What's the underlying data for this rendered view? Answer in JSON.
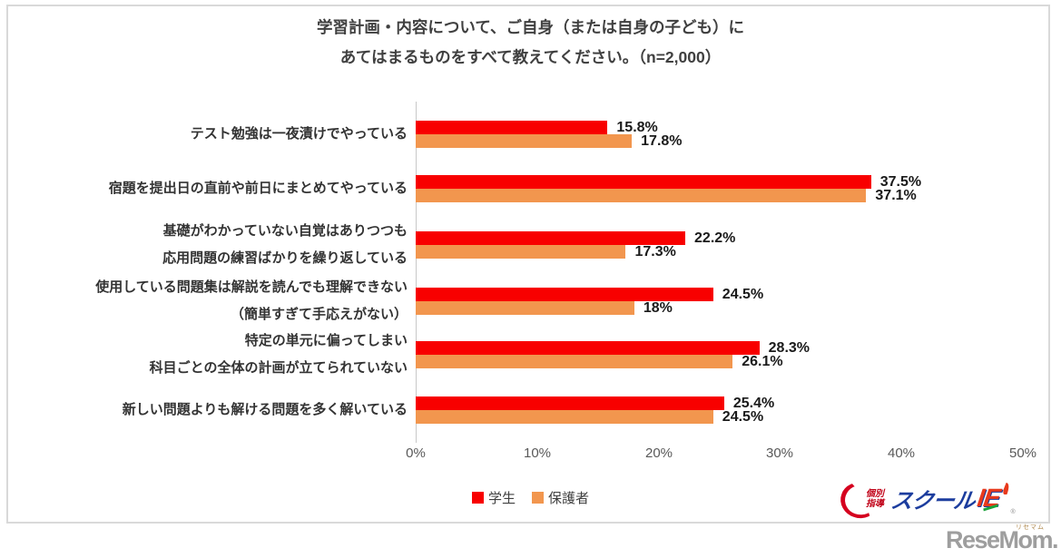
{
  "title": {
    "line1": "学習計画・内容について、ご自身（または自身の子ども）に",
    "line2": "あてはまるものをすべて教えてください。（n=2,000）"
  },
  "colors": {
    "student": "#f80000",
    "parent": "#f2964e"
  },
  "axis": {
    "max": 50,
    "ticks": [
      "0%",
      "10%",
      "20%",
      "30%",
      "40%",
      "50%"
    ]
  },
  "legend": {
    "student": "学生",
    "parent": "保護者"
  },
  "categories": [
    {
      "line1": "テスト勉強は一夜漬けでやっている",
      "line2": "",
      "student": 15.8,
      "parent": 17.8,
      "student_pct": "15.8%",
      "parent_pct": "17.8%"
    },
    {
      "line1": "宿題を提出日の直前や前日にまとめてやっている",
      "line2": "",
      "student": 37.5,
      "parent": 37.1,
      "student_pct": "37.5%",
      "parent_pct": "37.1%"
    },
    {
      "line1": "基礎がわかっていない自覚はありつつも",
      "line2": "応用問題の練習ばかりを繰り返している",
      "student": 22.2,
      "parent": 17.3,
      "student_pct": "22.2%",
      "parent_pct": "17.3%"
    },
    {
      "line1": "使用している問題集は解説を読んでも理解できない",
      "line2": "（簡単すぎて手応えがない）",
      "student": 24.5,
      "parent": 18,
      "student_pct": "24.5%",
      "parent_pct": "18%"
    },
    {
      "line1": "特定の単元に偏ってしまい",
      "line2": "科目ごとの全体の計画が立てられていない",
      "student": 28.3,
      "parent": 26.1,
      "student_pct": "28.3%",
      "parent_pct": "26.1%"
    },
    {
      "line1": "新しい問題よりも解ける問題を多く解いている",
      "line2": "",
      "student": 25.4,
      "parent": 24.5,
      "student_pct": "25.4%",
      "parent_pct": "24.5%"
    }
  ],
  "logos": {
    "school_ie": {
      "kobetsu1": "個別",
      "kobetsu2": "指導",
      "school": "スクール",
      "ie": "IE",
      "reg": "®"
    },
    "resemom": {
      "text": "ReseMom.",
      "ruby": "リセマム"
    }
  },
  "chart_data": {
    "type": "bar",
    "orientation": "horizontal",
    "title": "学習計画・内容について、ご自身（または自身の子ども）にあてはまるものをすべて教えてください。（n=2,000）",
    "n": "n=2,000",
    "categories": [
      "テスト勉強は一夜漬けでやっている",
      "宿題を提出日の直前や前日にまとめてやっている",
      "基礎がわかっていない自覚はありつつも応用問題の練習ばかりを繰り返している",
      "使用している問題集は解説を読んでも理解できない（簡単すぎて手応えがない）",
      "特定の単元に偏ってしまい科目ごとの全体の計画が立てられていない",
      "新しい問題よりも解ける問題を多く解いている"
    ],
    "series": [
      {
        "name": "学生",
        "color": "#f80000",
        "values": [
          15.8,
          37.5,
          22.2,
          24.5,
          28.3,
          25.4
        ]
      },
      {
        "name": "保護者",
        "color": "#f2964e",
        "values": [
          17.8,
          37.1,
          17.3,
          18,
          26.1,
          24.5
        ]
      }
    ],
    "value_labels": [
      "15.8%",
      "17.8%",
      "37.5%",
      "37.1%",
      "22.2%",
      "17.3%",
      "24.5%",
      "18%",
      "28.3%",
      "26.1%",
      "25.4%",
      "24.5%"
    ],
    "xlim": [
      0,
      50
    ],
    "xticks": [
      "0%",
      "10%",
      "20%",
      "30%",
      "40%",
      "50%"
    ],
    "grid": false,
    "legend_position": "bottom"
  }
}
